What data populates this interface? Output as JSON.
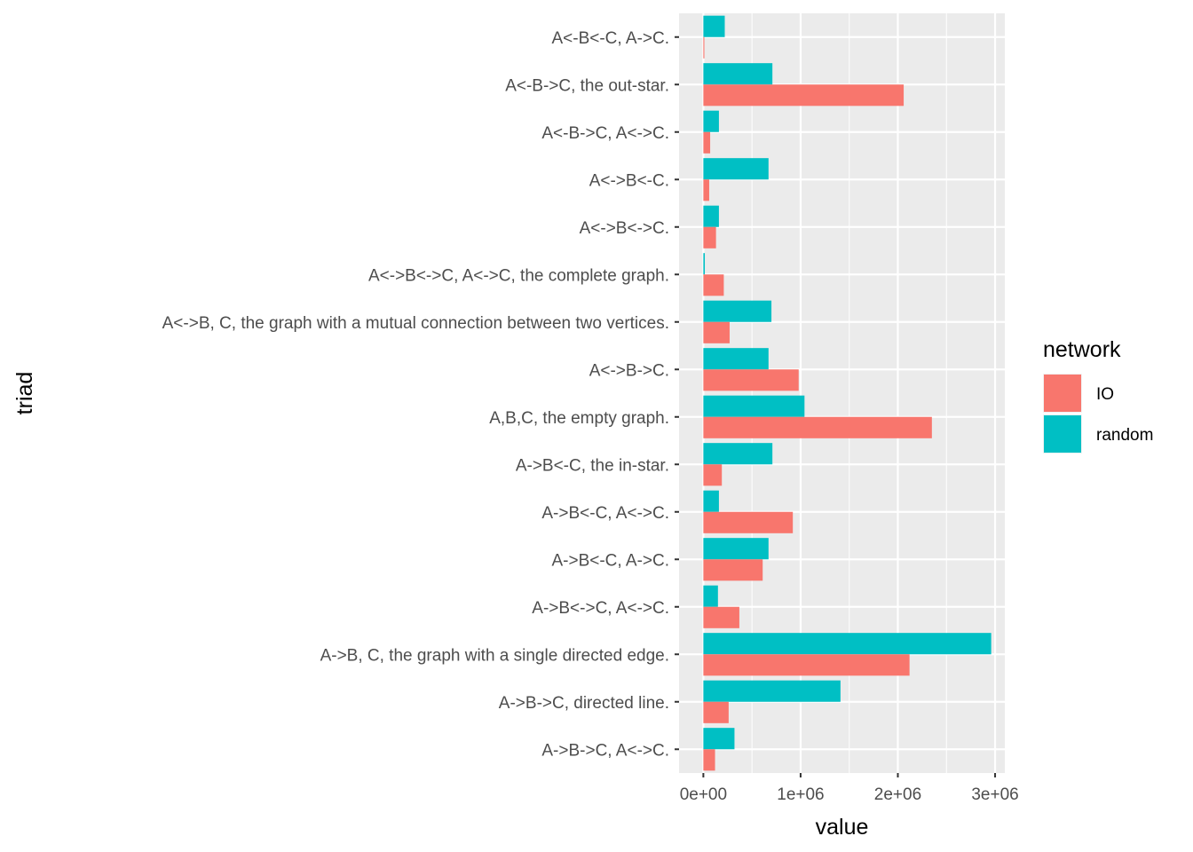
{
  "chart_data": {
    "type": "bar",
    "orientation": "horizontal",
    "title": "",
    "xlabel": "value",
    "ylabel": "triad",
    "xlim": [
      -250000,
      3100000
    ],
    "x_ticks": [
      0,
      1000000,
      2000000,
      3000000
    ],
    "x_tick_labels": [
      "0e+00",
      "1e+06",
      "2e+06",
      "3e+06"
    ],
    "grid": true,
    "legend": {
      "title": "network",
      "position": "right"
    },
    "categories": [
      "A<-B<-C, A->C.",
      "A<-B->C, the out-star.",
      "A<-B->C, A<->C.",
      "A<->B<-C.",
      "A<->B<->C.",
      "A<->B<->C, A<->C, the complete graph.",
      "A<->B, C, the graph with a mutual connection between two vertices.",
      "A<->B->C.",
      "A,B,C, the empty graph.",
      "A->B<-C, the in-star.",
      "A->B<-C, A<->C.",
      "A->B<-C, A->C.",
      "A->B<->C, A<->C.",
      "A->B, C, the graph with a single directed edge.",
      "A->B->C, directed line.",
      "A->B->C, A<->C."
    ],
    "series": [
      {
        "name": "IO",
        "color": "#F8766D",
        "values": [
          10000,
          2060000,
          70000,
          60000,
          130000,
          210000,
          270000,
          980000,
          2350000,
          190000,
          920000,
          610000,
          370000,
          2120000,
          260000,
          120000
        ]
      },
      {
        "name": "random",
        "color": "#00BFC4",
        "values": [
          220000,
          710000,
          160000,
          670000,
          160000,
          15000,
          700000,
          670000,
          1040000,
          710000,
          160000,
          670000,
          150000,
          2960000,
          1410000,
          320000
        ]
      }
    ]
  }
}
